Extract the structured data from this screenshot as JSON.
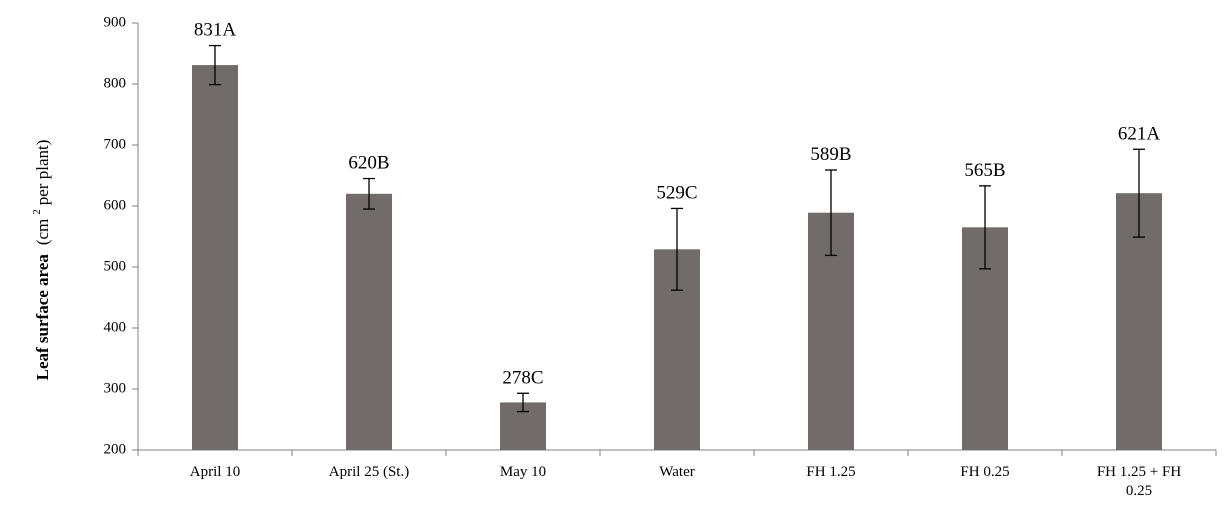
{
  "chart_data": {
    "type": "bar",
    "categories": [
      "April 10",
      "April 25 (St.)",
      "May 10",
      "Water",
      "FH 1.25",
      "FH 0.25",
      "FH 1.25 + FH 0.25"
    ],
    "category_lines": [
      [
        "April 10"
      ],
      [
        "April 25 (St.)"
      ],
      [
        "May 10"
      ],
      [
        "Water"
      ],
      [
        "FH 1.25"
      ],
      [
        "FH 0.25"
      ],
      [
        "FH 1.25 + FH",
        "0.25"
      ]
    ],
    "values": [
      831,
      620,
      278,
      529,
      589,
      565,
      621
    ],
    "error": [
      32,
      25,
      15,
      67,
      70,
      68,
      72
    ],
    "data_labels": [
      "831A",
      "620B",
      "278C",
      "529C",
      "589B",
      "565B",
      "621A"
    ],
    "ylabel": {
      "main": "Leaf surface area",
      "unit_prefix": "(cm",
      "unit_sup": "2",
      "unit_suffix": " per plant)"
    },
    "ylim": [
      200,
      900
    ],
    "yticks": [
      200,
      300,
      400,
      500,
      600,
      700,
      800,
      900
    ],
    "grid": false,
    "bar_color": "#716c6a"
  }
}
